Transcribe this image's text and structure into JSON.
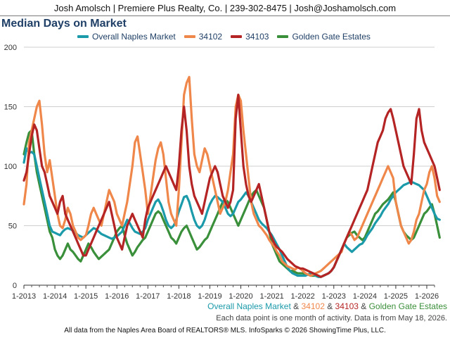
{
  "header": {
    "contact": "Josh Amolsch | Premiere Plus Realty, Co. | 239-302-8475 | Josh@Joshamolsch.com"
  },
  "chart_data": {
    "type": "line",
    "title": "Median Days on Market",
    "x_labels": [
      "1-2013",
      "1-2014",
      "1-2015",
      "1-2016",
      "1-2017",
      "1-2018",
      "1-2019",
      "1-2020",
      "1-2021",
      "1-2022",
      "1-2023",
      "1-2024",
      "1-2025",
      "1-2026"
    ],
    "y_ticks": [
      0,
      50,
      100,
      150,
      200
    ],
    "ylim": [
      0,
      200
    ],
    "x_range": [
      "1-2013",
      "4-2026"
    ],
    "grid": true,
    "legend_position": "top",
    "series": [
      {
        "name": "Overall Naples Market",
        "color": "#1b9aaa",
        "values": [
          103,
          115,
          111,
          112,
          110,
          100,
          90,
          80,
          70,
          60,
          50,
          45,
          44,
          43,
          42,
          45,
          47,
          48,
          47,
          46,
          44,
          42,
          41,
          40,
          42,
          44,
          46,
          48,
          47,
          45,
          43,
          42,
          41,
          40,
          39,
          40,
          41,
          43,
          45,
          50,
          55,
          52,
          48,
          45,
          44,
          43,
          45,
          48,
          55,
          60,
          65,
          70,
          72,
          68,
          62,
          55,
          50,
          48,
          50,
          55,
          62,
          68,
          74,
          75,
          70,
          62,
          55,
          50,
          48,
          50,
          55,
          62,
          68,
          72,
          75,
          74,
          72,
          70,
          65,
          60,
          58,
          60,
          65,
          70,
          72,
          75,
          78,
          75,
          70,
          65,
          60,
          55,
          52,
          50,
          48,
          45,
          42,
          38,
          34,
          30,
          25,
          20,
          15,
          12,
          10,
          9,
          8,
          8,
          8,
          8,
          9,
          10,
          9,
          8,
          7,
          7,
          8,
          9,
          10,
          12,
          15,
          20,
          25,
          30,
          35,
          32,
          30,
          28,
          30,
          32,
          34,
          35,
          38,
          42,
          45,
          48,
          52,
          55,
          58,
          62,
          65,
          68,
          72,
          75,
          78,
          80,
          82,
          84,
          85,
          86,
          87,
          86,
          85,
          84,
          82,
          80,
          75,
          70,
          65,
          60,
          56,
          55
        ]
      },
      {
        "name": "34102",
        "color": "#f0874a",
        "values": [
          68,
          85,
          120,
          130,
          140,
          150,
          155,
          135,
          110,
          95,
          105,
          90,
          75,
          60,
          50,
          48,
          55,
          65,
          60,
          50,
          45,
          40,
          38,
          40,
          42,
          50,
          60,
          65,
          60,
          55,
          50,
          60,
          70,
          80,
          75,
          70,
          60,
          55,
          50,
          60,
          70,
          85,
          100,
          120,
          125,
          110,
          95,
          80,
          60,
          75,
          90,
          105,
          115,
          120,
          110,
          90,
          70,
          60,
          55,
          50,
          80,
          120,
          160,
          170,
          175,
          140,
          110,
          100,
          95,
          105,
          115,
          110,
          100,
          90,
          80,
          70,
          60,
          65,
          70,
          80,
          95,
          110,
          150,
          160,
          155,
          130,
          110,
          90,
          70,
          60,
          55,
          50,
          48,
          45,
          42,
          38,
          35,
          32,
          28,
          25,
          20,
          18,
          16,
          15,
          14,
          13,
          15,
          14,
          12,
          10,
          9,
          8,
          9,
          10,
          11,
          12,
          14,
          16,
          18,
          20,
          22,
          24,
          26,
          28,
          35,
          40,
          45,
          42,
          38,
          40,
          45,
          50,
          55,
          60,
          65,
          70,
          75,
          80,
          85,
          90,
          95,
          100,
          95,
          90,
          70,
          60,
          50,
          45,
          40,
          35,
          38,
          45,
          55,
          60,
          70,
          80,
          85,
          95,
          100,
          90,
          75,
          70
        ]
      },
      {
        "name": "34103",
        "color": "#b52424",
        "values": [
          88,
          95,
          110,
          125,
          135,
          130,
          115,
          100,
          95,
          85,
          75,
          70,
          65,
          60,
          70,
          75,
          60,
          55,
          50,
          45,
          40,
          35,
          30,
          25,
          25,
          30,
          35,
          40,
          45,
          50,
          55,
          60,
          65,
          70,
          60,
          50,
          40,
          35,
          30,
          40,
          50,
          55,
          60,
          55,
          50,
          45,
          40,
          55,
          65,
          70,
          75,
          80,
          85,
          90,
          95,
          100,
          95,
          90,
          85,
          80,
          100,
          130,
          150,
          130,
          100,
          85,
          75,
          70,
          65,
          60,
          70,
          80,
          90,
          95,
          100,
          95,
          85,
          75,
          70,
          65,
          70,
          80,
          140,
          160,
          130,
          100,
          85,
          75,
          70,
          75,
          80,
          85,
          75,
          65,
          55,
          45,
          40,
          35,
          32,
          30,
          28,
          25,
          22,
          20,
          18,
          16,
          15,
          14,
          14,
          13,
          12,
          11,
          10,
          9,
          8,
          7,
          8,
          9,
          10,
          12,
          15,
          20,
          25,
          30,
          35,
          40,
          45,
          50,
          55,
          60,
          65,
          70,
          75,
          80,
          90,
          100,
          110,
          120,
          125,
          130,
          140,
          145,
          148,
          140,
          130,
          120,
          110,
          100,
          95,
          90,
          85,
          110,
          140,
          148,
          130,
          120,
          115,
          110,
          105,
          100,
          90,
          80
        ]
      },
      {
        "name": "Golden Gate Estates",
        "color": "#3a8f3a",
        "values": [
          110,
          120,
          128,
          130,
          110,
          95,
          85,
          75,
          65,
          55,
          45,
          40,
          30,
          25,
          22,
          25,
          30,
          35,
          30,
          28,
          25,
          22,
          20,
          25,
          30,
          35,
          32,
          28,
          25,
          22,
          24,
          26,
          28,
          30,
          35,
          40,
          45,
          48,
          50,
          42,
          35,
          30,
          25,
          28,
          32,
          35,
          38,
          40,
          45,
          50,
          55,
          60,
          62,
          60,
          55,
          50,
          45,
          40,
          38,
          35,
          40,
          45,
          48,
          50,
          45,
          40,
          35,
          30,
          32,
          35,
          38,
          40,
          45,
          50,
          55,
          60,
          65,
          70,
          72,
          70,
          65,
          60,
          55,
          50,
          55,
          60,
          65,
          70,
          75,
          78,
          80,
          75,
          70,
          65,
          55,
          45,
          35,
          30,
          25,
          20,
          18,
          16,
          14,
          12,
          12,
          11,
          10,
          10,
          10,
          9,
          9,
          8,
          8,
          8,
          7,
          7,
          8,
          9,
          10,
          12,
          15,
          20,
          25,
          30,
          35,
          40,
          42,
          44,
          45,
          42,
          40,
          38,
          40,
          45,
          50,
          55,
          60,
          62,
          65,
          68,
          70,
          72,
          75,
          78,
          70,
          60,
          50,
          45,
          42,
          40,
          38,
          40,
          45,
          50,
          55,
          60,
          62,
          65,
          68,
          60,
          50,
          40
        ]
      }
    ]
  },
  "caption": {
    "sep1": " & ",
    "sep2": " & ",
    "sep3": " & "
  },
  "note": "Each data point is one month of activity. Data is from May 18, 2026.",
  "footer": "All data from the Naples Area Board of REALTORS® MLS. InfoSparks © 2026 ShowingTime Plus, LLC."
}
